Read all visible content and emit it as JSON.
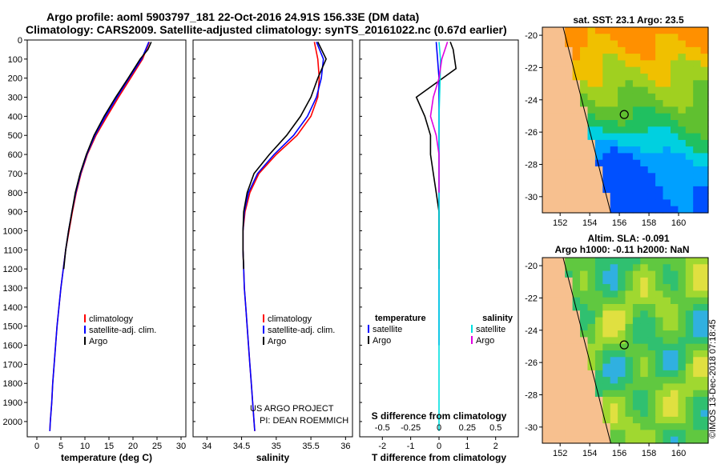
{
  "header": {
    "line1": "Argo profile: aoml 5903797_181 22-Oct-2016 24.91S 156.33E (DM data)",
    "line2": "Climatology: CARS2009. Satellite-adjusted climatology: synTS_20161022.nc (0.67d earlier)"
  },
  "credit": {
    "project": "US ARGO PROJECT",
    "pi": "PI: DEAN ROEMMICH"
  },
  "side_stamp": "©IMOS 13-Dec-2018 07:18:45",
  "colors": {
    "climatology": "#ff0000",
    "satellite": "#0000ff",
    "argo": "#000000",
    "sat_salinity": "#00e0e0",
    "argo_salinity_diff": "#e000e0"
  },
  "chart_data": [
    {
      "type": "line",
      "name": "temperature",
      "xlabel": "temperature (deg C)",
      "ylabel": "",
      "xlim": [
        -2,
        31
      ],
      "ylim": [
        2080,
        0
      ],
      "xticks": [
        0,
        5,
        10,
        15,
        20,
        25,
        30
      ],
      "yticks": [
        0,
        100,
        200,
        300,
        400,
        500,
        600,
        700,
        800,
        900,
        1000,
        1100,
        1200,
        1300,
        1400,
        1500,
        1600,
        1700,
        1800,
        1900,
        2000
      ],
      "legend": [
        "climatology",
        "satellite-adj. clim.",
        "Argo"
      ],
      "series": [
        {
          "name": "climatology",
          "color": "#ff0000",
          "x": [
            23.4,
            22.0,
            19.5,
            17.0,
            14.6,
            12.3,
            10.5,
            9.2,
            8.2,
            7.4,
            6.7,
            6.0,
            5.5,
            5.0,
            4.6,
            4.2,
            3.9,
            3.6,
            3.3,
            3.1,
            2.8,
            2.7
          ],
          "y": [
            10,
            100,
            200,
            300,
            400,
            500,
            600,
            700,
            800,
            900,
            1000,
            1100,
            1200,
            1300,
            1400,
            1500,
            1600,
            1700,
            1800,
            1900,
            2000,
            2050
          ]
        },
        {
          "name": "satellite-adj. clim.",
          "color": "#0000ff",
          "x": [
            23.3,
            21.8,
            19.2,
            16.7,
            14.3,
            12.1,
            10.4,
            9.1,
            8.1,
            7.3,
            6.6,
            6.0,
            5.5,
            5.0,
            4.6,
            4.2,
            3.9,
            3.6,
            3.3,
            3.1,
            2.8,
            2.7
          ],
          "y": [
            10,
            100,
            200,
            300,
            400,
            500,
            600,
            700,
            800,
            900,
            1000,
            1100,
            1200,
            1300,
            1400,
            1500,
            1600,
            1700,
            1800,
            1900,
            2000,
            2050
          ]
        },
        {
          "name": "Argo",
          "color": "#000000",
          "x": [
            23.8,
            23.1,
            21.5,
            19.0,
            16.4,
            14.0,
            11.9,
            10.3,
            9.0,
            8.0,
            7.3,
            6.6,
            6.0,
            5.6
          ],
          "y": [
            10,
            50,
            100,
            200,
            300,
            400,
            500,
            600,
            700,
            800,
            900,
            1000,
            1100,
            1200
          ]
        }
      ]
    },
    {
      "type": "line",
      "name": "salinity",
      "xlabel": "salinity",
      "ylabel": "",
      "xlim": [
        33.8,
        36.1
      ],
      "ylim": [
        2080,
        0
      ],
      "xticks": [
        34,
        34.5,
        35,
        35.5,
        36
      ],
      "legend": [
        "climatology",
        "satellite-adj. clim.",
        "Argo"
      ],
      "series": [
        {
          "name": "climatology",
          "color": "#ff0000",
          "x": [
            35.55,
            35.6,
            35.62,
            35.6,
            35.5,
            35.3,
            35.0,
            34.75,
            34.62,
            34.55,
            34.52,
            34.52,
            34.53,
            34.54,
            34.56,
            34.58,
            34.6,
            34.62,
            34.64,
            34.66,
            34.68,
            34.69
          ],
          "y": [
            10,
            100,
            200,
            300,
            400,
            500,
            600,
            700,
            800,
            900,
            1000,
            1100,
            1200,
            1300,
            1400,
            1500,
            1600,
            1700,
            1800,
            1900,
            2000,
            2050
          ]
        },
        {
          "name": "satellite-adj. clim.",
          "color": "#0000ff",
          "x": [
            35.58,
            35.68,
            35.65,
            35.58,
            35.45,
            35.25,
            34.97,
            34.73,
            34.6,
            34.54,
            34.52,
            34.52,
            34.53,
            34.54,
            34.56,
            34.58,
            34.6,
            34.62,
            34.64,
            34.66,
            34.68,
            34.69
          ],
          "y": [
            10,
            100,
            200,
            300,
            400,
            500,
            600,
            700,
            800,
            900,
            1000,
            1100,
            1200,
            1300,
            1400,
            1500,
            1600,
            1700,
            1800,
            1900,
            2000,
            2050
          ]
        },
        {
          "name": "Argo",
          "color": "#000000",
          "x": [
            35.6,
            35.72,
            35.6,
            35.5,
            35.35,
            35.15,
            34.9,
            34.68,
            34.58,
            34.53,
            34.52,
            34.52,
            34.53
          ],
          "y": [
            10,
            100,
            200,
            300,
            400,
            500,
            600,
            700,
            800,
            900,
            1000,
            1100,
            1200
          ]
        }
      ]
    },
    {
      "type": "line",
      "name": "differences",
      "xlabel": "T difference from climatology",
      "xlabel2": "S difference from climatology",
      "xlim": [
        -2.8,
        2.8
      ],
      "ylim": [
        2080,
        0
      ],
      "xticks": [
        -2,
        -1,
        0,
        1,
        2
      ],
      "xticks2": [
        -0.5,
        -0.25,
        0,
        0.25,
        0.5
      ],
      "xticks2_labels": [
        "-0.5",
        "-0.25",
        "0",
        "0.25",
        "0.5"
      ],
      "legend_titles": {
        "temperature": "temperature",
        "salinity": "salinity"
      },
      "legend": [
        "satellite",
        "Argo",
        "satellite",
        "Argo"
      ],
      "series": [
        {
          "name": "temperature satellite",
          "color": "#0000ff",
          "x": [
            -0.1,
            -0.05,
            0.0,
            0.0,
            0.0,
            0.0,
            0.0,
            0.0,
            0.0,
            0.0,
            0.0,
            0.0,
            0.0,
            0.0,
            0.0,
            0.0,
            0.0
          ],
          "y": [
            10,
            100,
            200,
            300,
            400,
            500,
            600,
            700,
            800,
            900,
            1000,
            1100,
            1200,
            1300,
            1400,
            1500,
            1600
          ]
        },
        {
          "name": "temperature Argo",
          "color": "#000000",
          "x": [
            0.4,
            0.5,
            0.6,
            -0.8,
            -0.5,
            -0.3,
            -0.3,
            -0.2,
            -0.1,
            0.0,
            0.0,
            0.0,
            0.0
          ],
          "y": [
            10,
            50,
            150,
            300,
            400,
            500,
            600,
            700,
            800,
            900,
            1000,
            1100,
            1200
          ]
        },
        {
          "name": "salinity satellite",
          "color": "#00e0e0",
          "x": [
            0.0,
            0.05,
            0.04,
            0.02,
            0.0,
            0.0,
            0.0,
            0.0,
            0.0,
            0.0,
            0.0,
            0.0,
            0.0,
            0.0,
            0.0,
            0.0,
            0.0,
            0.0
          ],
          "y": [
            10,
            100,
            200,
            300,
            400,
            500,
            600,
            700,
            800,
            900,
            1000,
            1100,
            1200,
            1300,
            1400,
            1500,
            1600,
            2050
          ]
        },
        {
          "name": "salinity Argo",
          "color": "#e000e0",
          "x": [
            0.3,
            0.1,
            0.0,
            -0.2,
            -0.3,
            -0.1,
            0.0,
            0.0,
            0.0
          ],
          "y": [
            10,
            100,
            200,
            300,
            400,
            500,
            600,
            700,
            800
          ]
        }
      ]
    },
    {
      "type": "heatmap",
      "name": "sst-map",
      "title": "sat. SST: 23.1  Argo: 23.5",
      "xlim": [
        150.8,
        162
      ],
      "ylim": [
        -31,
        -19.5
      ],
      "xticks": [
        152,
        154,
        156,
        158,
        160
      ],
      "yticks": [
        -20,
        -22,
        -24,
        -26,
        -28,
        -30
      ],
      "marker": [
        156.33,
        -24.91
      ]
    },
    {
      "type": "heatmap",
      "name": "sla-map",
      "title": "Altim. SLA: -0.091",
      "subtitle": "Argo h1000: -0.11 h2000: NaN",
      "xlim": [
        150.8,
        162
      ],
      "ylim": [
        -31,
        -19.5
      ],
      "xticks": [
        152,
        154,
        156,
        158,
        160
      ],
      "yticks": [
        -20,
        -22,
        -24,
        -26,
        -28,
        -30
      ],
      "marker": [
        156.33,
        -24.91
      ]
    }
  ]
}
